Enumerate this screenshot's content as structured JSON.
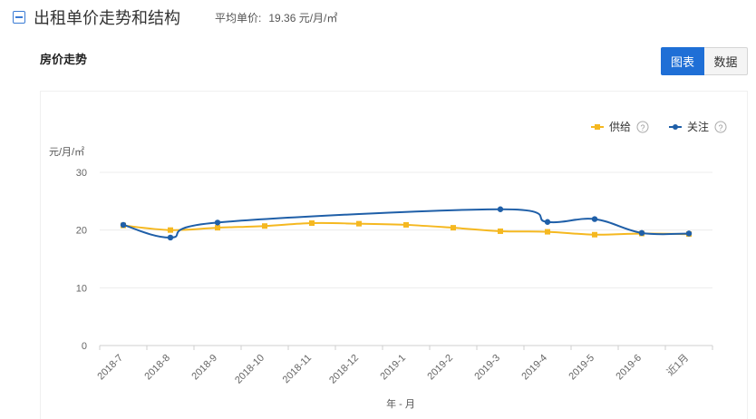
{
  "header": {
    "title": "出租单价走势和结构",
    "avg_label": "平均单价:",
    "avg_value": "19.36 元/月/㎡"
  },
  "section": {
    "title": "房价走势"
  },
  "toggle": {
    "chart_label": "图表",
    "data_label": "数据"
  },
  "chart_data": {
    "type": "line",
    "categories": [
      "2018-7",
      "2018-8",
      "2018-9",
      "2018-10",
      "2018-11",
      "2018-12",
      "2019-1",
      "2019-2",
      "2019-3",
      "2019-4",
      "2019-5",
      "2019-6",
      "近1月"
    ],
    "series": [
      {
        "name": "供给",
        "color": "#f5b820",
        "marker": "square",
        "values": [
          20.8,
          20.0,
          20.4,
          20.7,
          21.2,
          21.1,
          20.9,
          20.4,
          19.8,
          19.7,
          19.2,
          19.4,
          19.3
        ]
      },
      {
        "name": "关注",
        "color": "#1f5fa8",
        "marker": "circle",
        "values": [
          20.9,
          18.7,
          21.3,
          null,
          null,
          null,
          null,
          null,
          23.6,
          21.4,
          21.9,
          19.5,
          19.4
        ]
      }
    ],
    "ylabel": "元/月/㎡",
    "xlabel": "年 - 月",
    "ylim": [
      0,
      30
    ],
    "yticks": [
      0,
      10,
      20,
      30
    ],
    "legend_position": "top-right",
    "legend_help_icon": "question-circle-icon",
    "grid": true
  }
}
